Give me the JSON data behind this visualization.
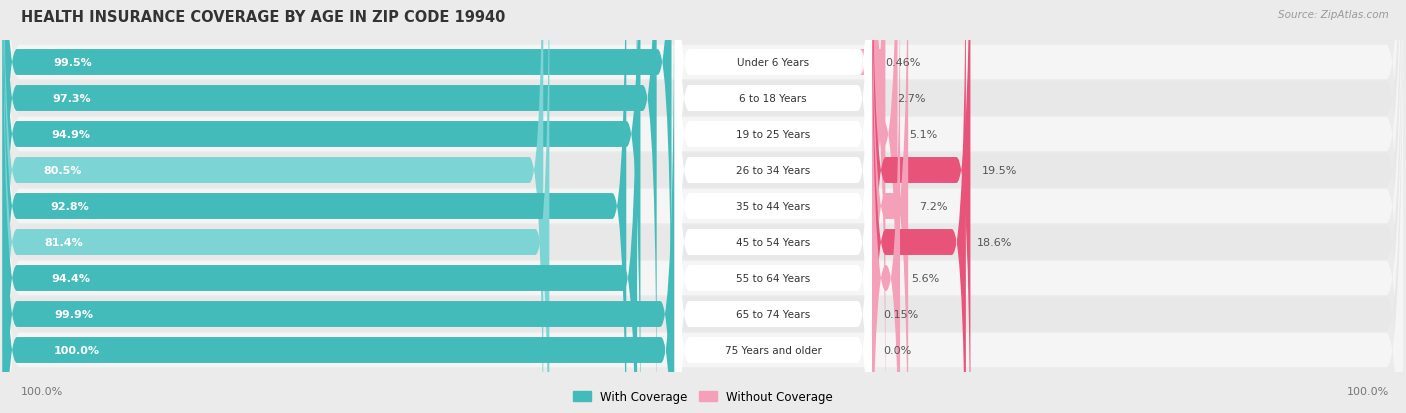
{
  "title": "HEALTH INSURANCE COVERAGE BY AGE IN ZIP CODE 19940",
  "source": "Source: ZipAtlas.com",
  "categories": [
    "Under 6 Years",
    "6 to 18 Years",
    "19 to 25 Years",
    "26 to 34 Years",
    "35 to 44 Years",
    "45 to 54 Years",
    "55 to 64 Years",
    "65 to 74 Years",
    "75 Years and older"
  ],
  "with_coverage": [
    99.5,
    97.3,
    94.9,
    80.5,
    92.8,
    81.4,
    94.4,
    99.9,
    100.0
  ],
  "without_coverage": [
    0.46,
    2.7,
    5.1,
    19.5,
    7.2,
    18.6,
    5.6,
    0.15,
    0.0
  ],
  "with_coverage_labels": [
    "99.5%",
    "97.3%",
    "94.9%",
    "80.5%",
    "92.8%",
    "81.4%",
    "94.4%",
    "99.9%",
    "100.0%"
  ],
  "without_coverage_labels": [
    "0.46%",
    "2.7%",
    "5.1%",
    "19.5%",
    "7.2%",
    "18.6%",
    "5.6%",
    "0.15%",
    "0.0%"
  ],
  "color_with": "#44BBBB",
  "color_with_light": "#7DD4D4",
  "color_without_light": "#F4A0B8",
  "color_without_strong": "#E8537A",
  "bg_color": "#ebebeb",
  "row_bg_even": "#f5f5f5",
  "row_bg_odd": "#e8e8e8",
  "title_fontsize": 10.5,
  "label_fontsize": 8.0,
  "legend_label_with": "With Coverage",
  "legend_label_without": "Without Coverage",
  "axis_label_left": "100.0%",
  "axis_label_right": "100.0%"
}
